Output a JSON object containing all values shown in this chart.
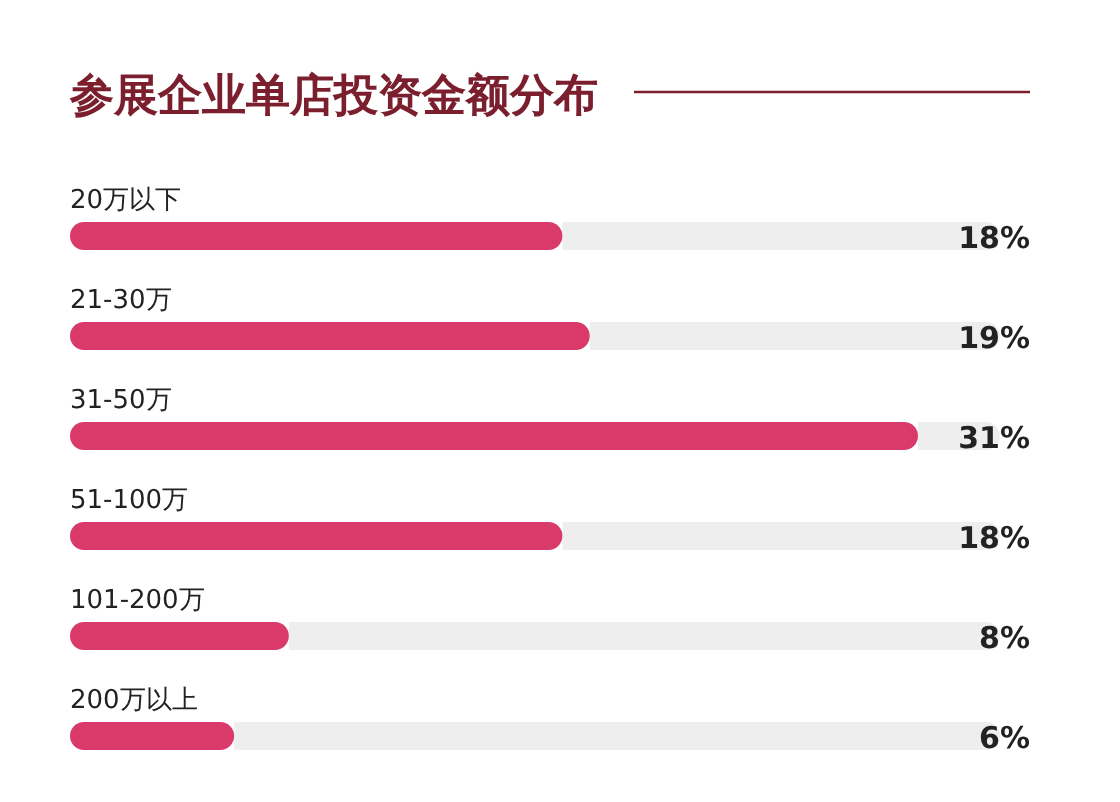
{
  "chart_data": {
    "type": "bar",
    "orientation": "horizontal",
    "title": "参展企业单店投资金额分布",
    "categories": [
      "20万以下",
      "21-30万",
      "31-50万",
      "51-100万",
      "101-200万",
      "200万以上"
    ],
    "values": [
      18,
      19,
      31,
      18,
      8,
      6
    ],
    "value_labels": [
      "18%",
      "19%",
      "31%",
      "18%",
      "8%",
      "6%"
    ],
    "color": "#d93a6a"
  }
}
